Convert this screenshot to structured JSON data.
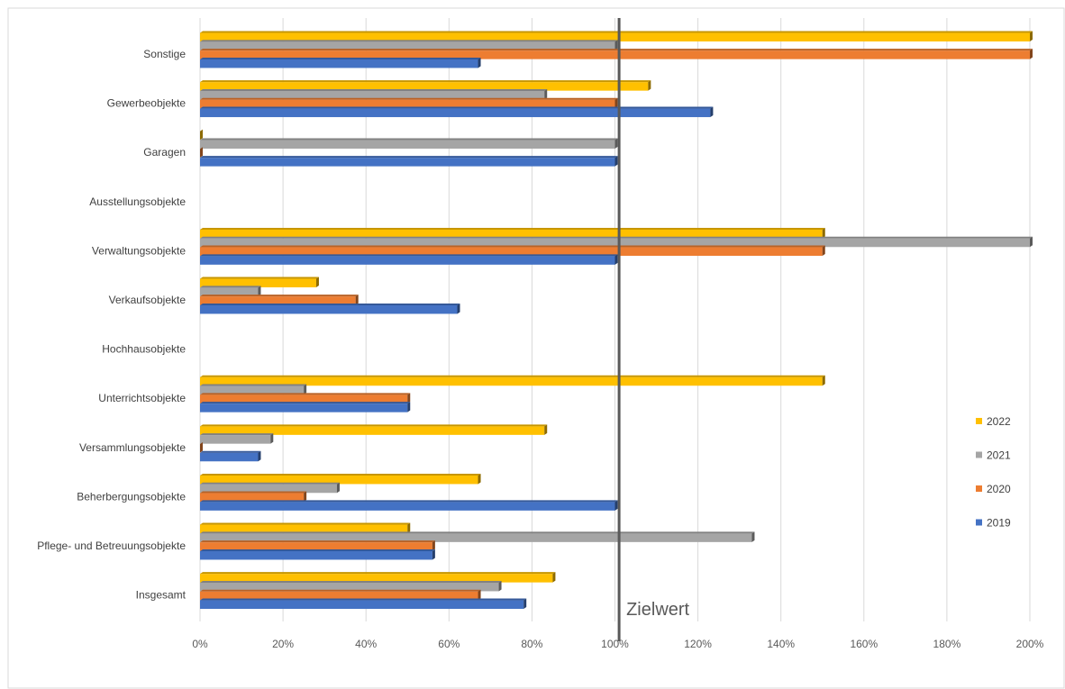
{
  "chart_data": {
    "type": "bar",
    "orientation": "horizontal",
    "categories": [
      "Sonstige",
      "Gewerbeobjekte",
      "Garagen",
      "Ausstellungsobjekte",
      "Verwaltungsobjekte",
      "Verkaufsobjekte",
      "Hochhausobjekte",
      "Unterrichtsobjekte",
      "Versammlungsobjekte",
      "Beherbergungsobjekte",
      "Pflege- und Betreuungsobjekte",
      "Insgesamt"
    ],
    "series": [
      {
        "name": "2022",
        "color": "#FFC000",
        "values": [
          2.0,
          1.08,
          0.0,
          null,
          1.5,
          0.28,
          null,
          1.5,
          0.83,
          0.67,
          0.5,
          0.85
        ]
      },
      {
        "name": "2021",
        "color": "#A5A5A5",
        "values": [
          1.0,
          0.83,
          1.0,
          null,
          2.0,
          0.14,
          null,
          0.25,
          0.17,
          0.33,
          1.33,
          0.72
        ]
      },
      {
        "name": "2020",
        "color": "#ED7D31",
        "values": [
          2.0,
          1.0,
          0.0,
          null,
          1.5,
          0.375,
          null,
          0.5,
          0.0,
          0.25,
          0.56,
          0.67
        ]
      },
      {
        "name": "2019",
        "color": "#4472C4",
        "values": [
          0.67,
          1.23,
          1.0,
          null,
          1.0,
          0.62,
          null,
          0.5,
          0.14,
          1.0,
          0.56,
          0.78
        ]
      }
    ],
    "x_ticks": [
      "0%",
      "20%",
      "40%",
      "60%",
      "80%",
      "100%",
      "120%",
      "140%",
      "160%",
      "180%",
      "200%"
    ],
    "xlim": [
      0,
      2.0
    ],
    "grid": true,
    "legend_position": "right",
    "reference_line": {
      "value": 1.01,
      "label": "Zielwert"
    },
    "title": "",
    "xlabel": "",
    "ylabel": ""
  }
}
